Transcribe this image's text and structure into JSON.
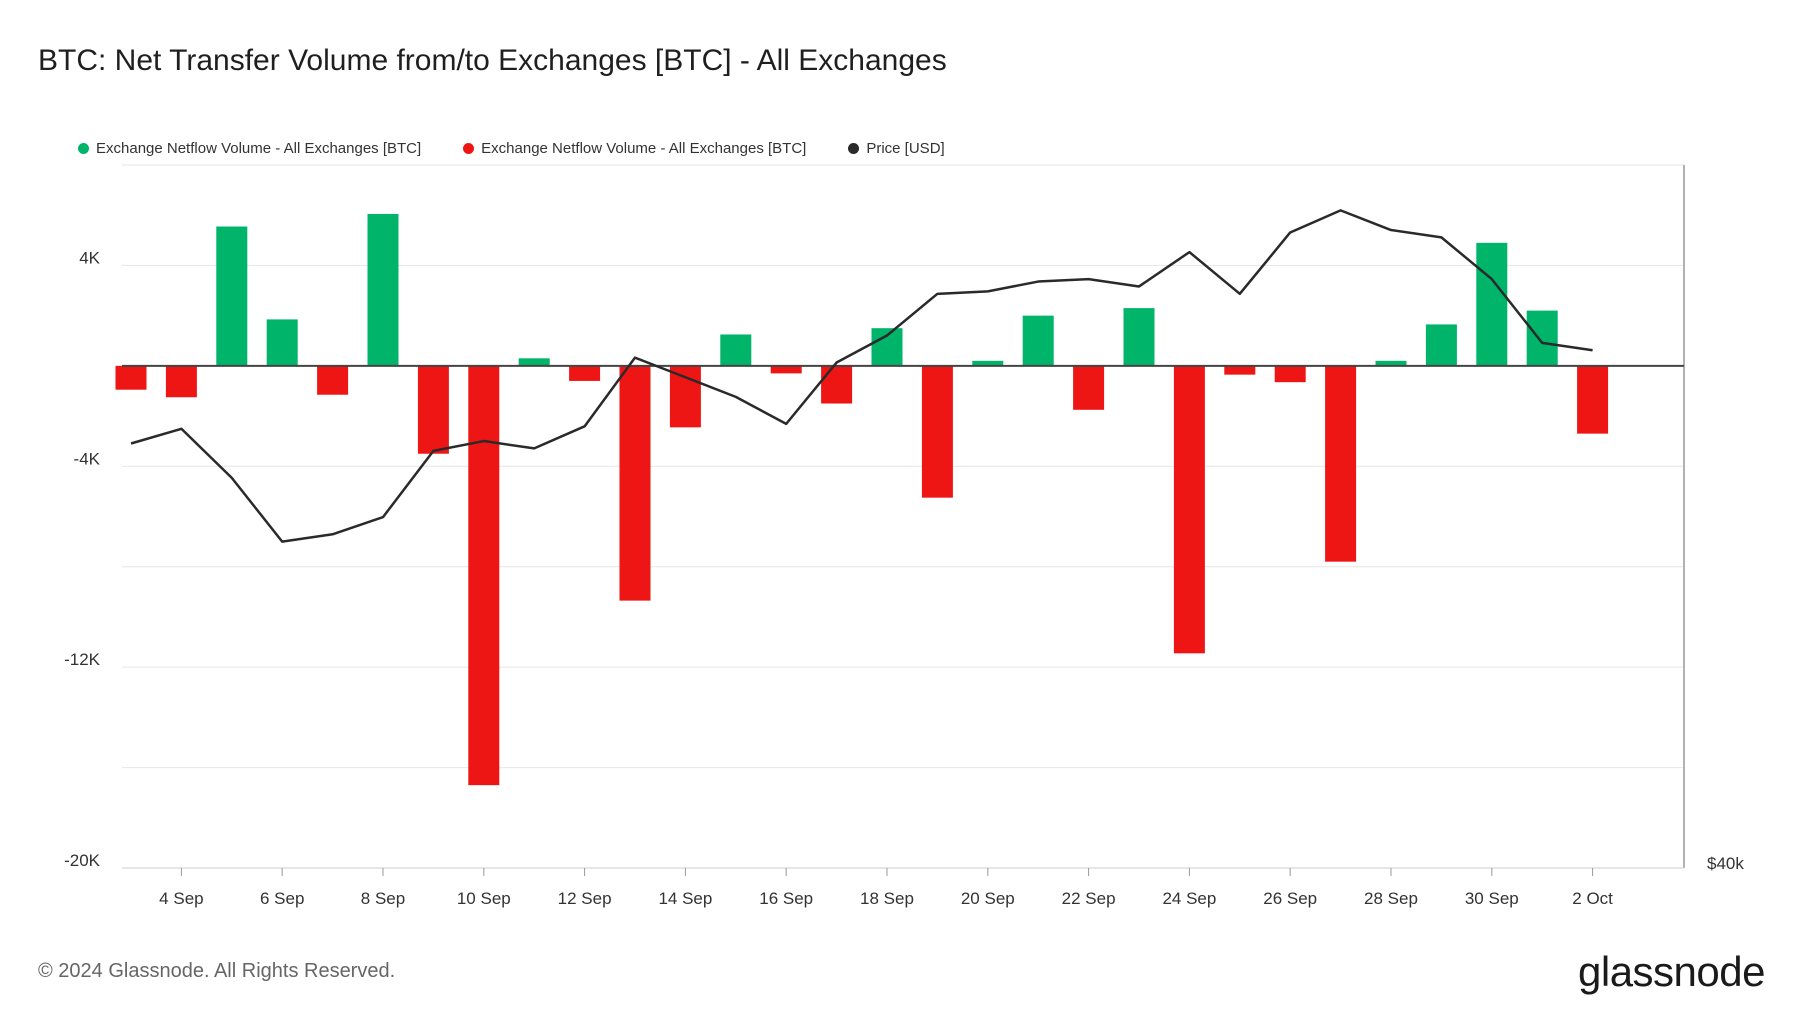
{
  "title": "BTC: Net Transfer Volume from/to Exchanges [BTC] - All Exchanges",
  "legend": [
    {
      "label": "Exchange Netflow Volume - All Exchanges [BTC]",
      "color": "#00b46a"
    },
    {
      "label": "Exchange Netflow Volume - All Exchanges [BTC]",
      "color": "#ee1515"
    },
    {
      "label": "Price [USD]",
      "color": "#2a2a2a"
    }
  ],
  "footer": "© 2024 Glassnode. All Rights Reserved.",
  "logo": "glassnode",
  "chart_data": {
    "type": "bar",
    "x": [
      "3 Sep",
      "4 Sep",
      "5 Sep",
      "6 Sep",
      "7 Sep",
      "8 Sep",
      "9 Sep",
      "10 Sep",
      "11 Sep",
      "12 Sep",
      "13 Sep",
      "14 Sep",
      "15 Sep",
      "16 Sep",
      "17 Sep",
      "18 Sep",
      "19 Sep",
      "20 Sep",
      "21 Sep",
      "22 Sep",
      "23 Sep",
      "24 Sep",
      "25 Sep",
      "26 Sep",
      "27 Sep",
      "28 Sep",
      "29 Sep",
      "30 Sep",
      "1 Oct",
      "2 Oct"
    ],
    "series": [
      {
        "name": "Exchange Netflow Volume - All Exchanges [BTC]",
        "kind": "bar",
        "color_positive": "#00b46a",
        "color_negative": "#ee1515",
        "values": [
          -950,
          -1250,
          5550,
          1850,
          -1150,
          6050,
          -3500,
          -16700,
          300,
          -600,
          -9350,
          -2450,
          1250,
          -300,
          -1500,
          1500,
          -5250,
          200,
          2000,
          -1750,
          2300,
          -11450,
          -350,
          -650,
          -7800,
          200,
          1650,
          4900,
          2200,
          -2700
        ]
      },
      {
        "name": "Price [USD]",
        "kind": "line",
        "color": "#2a2a2a",
        "values": [
          57300,
          57900,
          55900,
          53300,
          53600,
          54300,
          57000,
          57400,
          57100,
          58000,
          60800,
          60000,
          59200,
          58100,
          60600,
          61700,
          63400,
          63500,
          63900,
          64000,
          63700,
          65100,
          63400,
          65900,
          66800,
          66000,
          65700,
          64000,
          61400,
          61100
        ]
      }
    ],
    "y_ticks": [
      "4K",
      "-4K",
      "-12K",
      "-20K"
    ],
    "y_right_label": "$40k",
    "ylim": [
      -20000,
      8000
    ],
    "x_tick_labels": [
      "4 Sep",
      "6 Sep",
      "8 Sep",
      "10 Sep",
      "12 Sep",
      "14 Sep",
      "16 Sep",
      "18 Sep",
      "20 Sep",
      "22 Sep",
      "24 Sep",
      "26 Sep",
      "28 Sep",
      "30 Sep",
      "2 Oct"
    ],
    "grid": true,
    "legend_position": "top-left"
  }
}
